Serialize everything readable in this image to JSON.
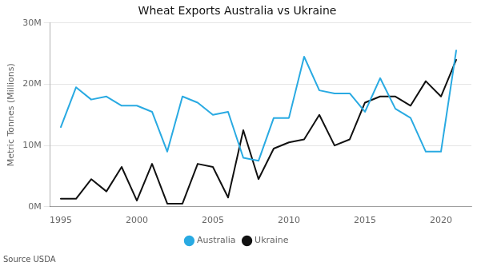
{
  "chart_data": {
    "type": "line",
    "title": "Wheat Exports Australia vs Ukraine",
    "y_label": "Metric Tonnes (Millions)",
    "source": "Source USDA",
    "x": [
      1995,
      1996,
      1997,
      1998,
      1999,
      2000,
      2001,
      2002,
      2003,
      2004,
      2005,
      2006,
      2007,
      2008,
      2009,
      2010,
      2011,
      2012,
      2013,
      2014,
      2015,
      2016,
      2017,
      2018,
      2019,
      2020,
      2021
    ],
    "series": [
      {
        "name": "Australia",
        "color": "#29aae2",
        "values": [
          13,
          19.5,
          17.5,
          18,
          16.5,
          16.5,
          15.5,
          9,
          18,
          17,
          15,
          15.5,
          8,
          7.5,
          14.5,
          14.5,
          24.5,
          19,
          18.5,
          18.5,
          15.5,
          21,
          16,
          14.5,
          9,
          9,
          25.5
        ]
      },
      {
        "name": "Ukraine",
        "color": "#111111",
        "values": [
          1.3,
          1.3,
          4.5,
          2.5,
          6.5,
          1,
          7,
          0.5,
          0.5,
          7,
          6.5,
          1.5,
          12.5,
          4.5,
          9.5,
          10.5,
          11,
          15,
          10,
          11,
          17,
          18,
          18,
          16.5,
          20.5,
          18,
          24
        ]
      }
    ],
    "xlim": [
      1994.3,
      2022.0
    ],
    "xticks": [
      1995,
      2000,
      2005,
      2010,
      2015,
      2020
    ],
    "ylim": [
      0,
      30
    ],
    "yticks": [
      {
        "value": 0,
        "label": "0M"
      },
      {
        "value": 10,
        "label": "10M"
      },
      {
        "value": 20,
        "label": "20M"
      },
      {
        "value": 30,
        "label": "30M"
      }
    ],
    "grid": "y",
    "legend": "bottom"
  }
}
